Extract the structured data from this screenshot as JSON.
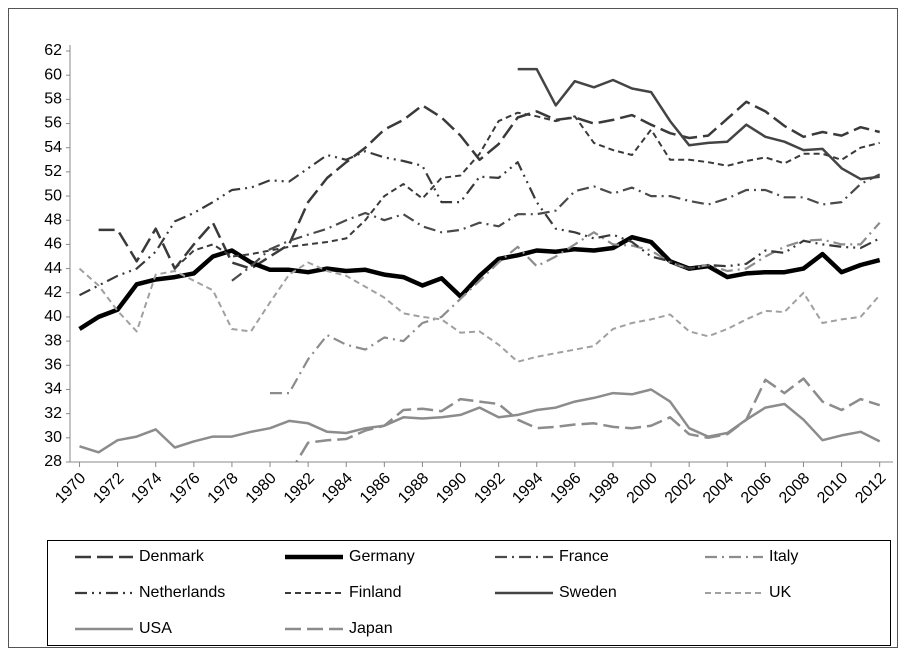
{
  "chart_data": {
    "type": "line",
    "x": [
      1970,
      1971,
      1972,
      1973,
      1974,
      1975,
      1976,
      1977,
      1978,
      1979,
      1980,
      1981,
      1982,
      1983,
      1984,
      1985,
      1986,
      1987,
      1988,
      1989,
      1990,
      1991,
      1992,
      1993,
      1994,
      1995,
      1996,
      1997,
      1998,
      1999,
      2000,
      2001,
      2002,
      2003,
      2004,
      2005,
      2006,
      2007,
      2008,
      2009,
      2010,
      2011,
      2012
    ],
    "xlim": [
      1970,
      2012
    ],
    "xticks": [
      1970,
      1972,
      1974,
      1976,
      1978,
      1980,
      1982,
      1984,
      1986,
      1988,
      1990,
      1992,
      1994,
      1996,
      1998,
      2000,
      2002,
      2004,
      2006,
      2008,
      2010,
      2012
    ],
    "ylim": [
      28,
      62
    ],
    "yticks": [
      28,
      30,
      32,
      34,
      36,
      38,
      40,
      42,
      44,
      46,
      48,
      50,
      52,
      54,
      56,
      58,
      60,
      62
    ],
    "grid": false,
    "legend": "bottom",
    "series": [
      {
        "name": "Denmark",
        "color": "#3a3a3a",
        "style": "long-dash",
        "values": [
          null,
          47.2,
          47.2,
          44.6,
          47.3,
          44.0,
          46.0,
          47.8,
          44.5,
          44.0,
          45.0,
          46.0,
          49.5,
          51.5,
          52.8,
          54.0,
          55.5,
          56.3,
          57.5,
          56.5,
          55.0,
          53.0,
          54.3,
          56.5,
          57.0,
          56.3,
          56.5,
          56.0,
          56.3,
          56.7,
          55.9,
          55.2,
          54.8,
          55.0,
          56.4,
          57.8,
          57.0,
          55.8,
          54.9,
          55.3,
          55.0,
          55.7,
          55.3
        ]
      },
      {
        "name": "Germany",
        "color": "#000000",
        "style": "thick",
        "values": [
          39.0,
          40.0,
          40.6,
          42.7,
          43.1,
          43.3,
          43.6,
          45.0,
          45.5,
          44.5,
          43.9,
          43.9,
          43.7,
          44.0,
          43.8,
          43.9,
          43.5,
          43.3,
          42.6,
          43.2,
          41.7,
          43.4,
          44.8,
          45.1,
          45.5,
          45.4,
          45.6,
          45.5,
          45.7,
          46.6,
          46.2,
          44.6,
          44.0,
          44.2,
          43.3,
          43.6,
          43.7,
          43.7,
          44.0,
          45.2,
          43.7,
          44.3,
          44.7
        ]
      },
      {
        "name": "France",
        "color": "#4a4a4a",
        "style": "dash-dot",
        "values": [
          null,
          null,
          null,
          null,
          null,
          null,
          null,
          null,
          43.0,
          44.2,
          45.6,
          46.3,
          46.8,
          47.3,
          48.0,
          48.6,
          48.0,
          48.5,
          47.5,
          47.0,
          47.2,
          47.8,
          47.5,
          48.5,
          48.5,
          48.8,
          50.4,
          50.8,
          50.2,
          50.7,
          50.0,
          50.0,
          49.6,
          49.3,
          49.8,
          50.5,
          50.5,
          49.9,
          49.9,
          49.3,
          49.5,
          51.0,
          51.8
        ]
      },
      {
        "name": "Italy",
        "color": "#8c8c8c",
        "style": "dash-dot",
        "values": [
          null,
          null,
          null,
          null,
          null,
          null,
          null,
          null,
          null,
          null,
          33.7,
          33.7,
          36.5,
          38.5,
          37.7,
          37.3,
          38.3,
          38.0,
          39.5,
          40.0,
          41.5,
          43.0,
          44.5,
          45.8,
          44.2,
          45.0,
          46.0,
          47.0,
          46.0,
          45.9,
          45.5,
          44.5,
          44.0,
          44.3,
          43.8,
          44.0,
          45.0,
          45.8,
          46.3,
          46.4,
          46.0,
          46.0,
          47.8
        ]
      },
      {
        "name": "Netherlands",
        "color": "#3a3a3a",
        "style": "dash-dot-dot",
        "values": [
          41.8,
          42.6,
          43.4,
          44.0,
          45.4,
          47.9,
          48.6,
          49.5,
          50.5,
          50.7,
          51.3,
          51.2,
          52.3,
          53.4,
          53.0,
          53.7,
          53.2,
          52.9,
          52.5,
          49.5,
          49.5,
          51.6,
          51.5,
          52.8,
          49.5,
          47.3,
          47.0,
          46.5,
          46.8,
          46.2,
          45.0,
          44.6,
          44.0,
          44.3,
          44.2,
          44.4,
          45.5,
          45.3,
          46.3,
          46.0,
          45.8,
          45.7,
          46.5
        ]
      },
      {
        "name": "Finland",
        "color": "#3a3a3a",
        "style": "short-dash",
        "values": [
          null,
          null,
          null,
          null,
          null,
          44.0,
          45.5,
          46.0,
          45.0,
          45.2,
          45.5,
          45.8,
          46.0,
          46.2,
          46.5,
          48.0,
          50.0,
          51.0,
          49.8,
          51.5,
          51.7,
          53.5,
          56.2,
          56.9,
          56.6,
          56.2,
          56.6,
          54.4,
          53.8,
          53.4,
          55.5,
          53.0,
          53.0,
          52.8,
          52.5,
          52.9,
          53.2,
          52.7,
          53.5,
          53.5,
          53.0,
          54.0,
          54.4
        ]
      },
      {
        "name": "Sweden",
        "color": "#444444",
        "style": "solid",
        "values": [
          null,
          null,
          null,
          null,
          null,
          null,
          null,
          null,
          null,
          null,
          null,
          null,
          null,
          null,
          null,
          null,
          null,
          null,
          null,
          null,
          null,
          null,
          null,
          60.5,
          60.5,
          57.5,
          59.5,
          59.0,
          59.6,
          58.9,
          58.6,
          56.2,
          54.2,
          54.4,
          54.5,
          55.9,
          54.9,
          54.5,
          53.8,
          53.9,
          52.3,
          51.4,
          51.6
        ]
      },
      {
        "name": "UK",
        "color": "#a0a0a0",
        "style": "short-dash",
        "values": [
          44.0,
          42.6,
          40.5,
          38.8,
          43.5,
          43.8,
          43.0,
          42.2,
          39.0,
          38.8,
          41.2,
          43.5,
          44.5,
          43.8,
          43.4,
          42.5,
          41.6,
          40.3,
          40.0,
          39.8,
          38.7,
          38.8,
          37.7,
          36.3,
          36.7,
          37.0,
          37.3,
          37.6,
          39.0,
          39.5,
          39.8,
          40.2,
          38.8,
          38.4,
          39.0,
          39.8,
          40.5,
          40.4,
          42.0,
          39.5,
          39.8,
          40.0,
          41.8
        ]
      },
      {
        "name": "USA",
        "color": "#8c8c8c",
        "style": "solid",
        "values": [
          29.3,
          28.8,
          29.8,
          30.1,
          30.7,
          29.2,
          29.7,
          30.1,
          30.1,
          30.5,
          30.8,
          31.4,
          31.2,
          30.5,
          30.4,
          30.8,
          31.0,
          31.7,
          31.6,
          31.7,
          31.9,
          32.5,
          31.7,
          31.9,
          32.3,
          32.5,
          33.0,
          33.3,
          33.7,
          33.6,
          34.0,
          33.0,
          30.8,
          30.1,
          30.4,
          31.5,
          32.5,
          32.8,
          31.5,
          29.8,
          30.2,
          30.5,
          29.7
        ]
      },
      {
        "name": "Japan",
        "color": "#8c8c8c",
        "style": "long-dash",
        "values": [
          null,
          null,
          null,
          null,
          null,
          null,
          null,
          null,
          null,
          null,
          null,
          27.0,
          29.6,
          29.8,
          29.9,
          30.6,
          31.0,
          32.3,
          32.4,
          32.2,
          33.2,
          33.0,
          32.8,
          31.5,
          30.8,
          30.9,
          31.1,
          31.2,
          30.9,
          30.8,
          31.0,
          31.7,
          30.3,
          30.0,
          30.3,
          31.5,
          34.8,
          33.7,
          34.9,
          33.0,
          32.3,
          33.2,
          32.7
        ]
      }
    ]
  }
}
